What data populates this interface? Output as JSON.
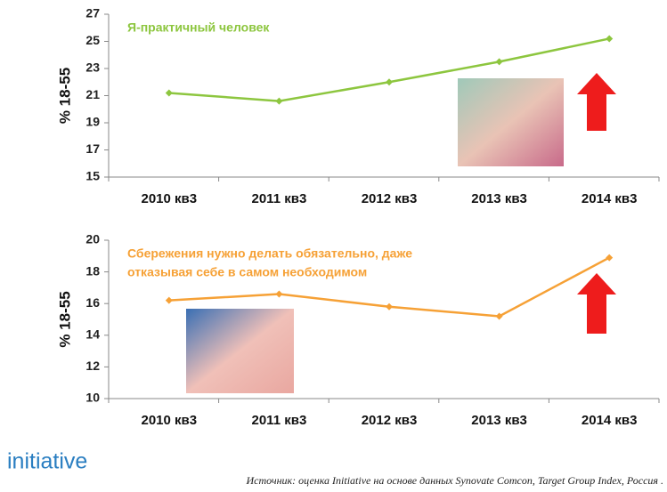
{
  "chart_data": [
    {
      "type": "line",
      "title": [
        "Я-практичный человек"
      ],
      "ylabel": "% 18-55",
      "categories": [
        "2010 кв3",
        "2011 кв3",
        "2012 кв3",
        "2013 кв3",
        "2014 кв3"
      ],
      "series": [
        {
          "color": "#8dc63f",
          "values": [
            21.2,
            20.6,
            22.0,
            23.5,
            25.2
          ]
        }
      ],
      "ylim": [
        15,
        27
      ],
      "yticks": [
        15,
        17,
        19,
        21,
        23,
        25,
        27
      ]
    },
    {
      "type": "line",
      "title": [
        "Сбережения нужно делать обязательно,  даже",
        "отказывая себе в самом необходимом"
      ],
      "ylabel": "% 18-55",
      "categories": [
        "2010 кв3",
        "2011 кв3",
        "2012 кв3",
        "2013 кв3",
        "2014 кв3"
      ],
      "series": [
        {
          "color": "#f6a136",
          "values": [
            16.2,
            16.6,
            15.8,
            15.2,
            18.9
          ]
        }
      ],
      "ylim": [
        10,
        20
      ],
      "yticks": [
        10,
        12,
        14,
        16,
        18,
        20
      ]
    }
  ],
  "logo": "initiative",
  "source": "Источник: оценка Initiative на основе данных Synovate Comcon, Target Group Index, Россия ."
}
